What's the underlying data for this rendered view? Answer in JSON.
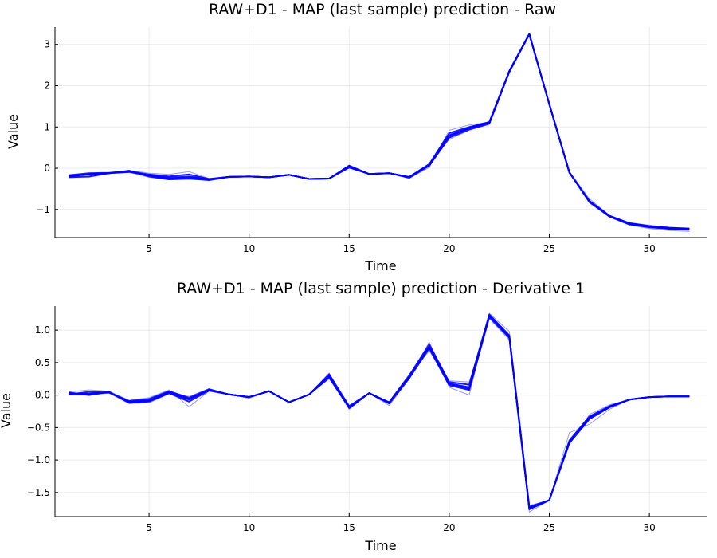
{
  "chart_data": [
    {
      "type": "line",
      "title": "RAW+D1 - MAP (last sample) prediction - Raw",
      "xlabel": "Time",
      "ylabel": "Value",
      "xlim": [
        0.3,
        32.9
      ],
      "ylim": [
        -1.68,
        3.42
      ],
      "xticks": [
        5,
        10,
        15,
        20,
        25,
        30
      ],
      "xtick_labels": [
        "5",
        "10",
        "15",
        "20",
        "25",
        "30"
      ],
      "yticks": [
        -1,
        0,
        1,
        2,
        3
      ],
      "ytick_labels": [
        "−1",
        "0",
        "1",
        "2",
        "3"
      ],
      "grid": true,
      "legend": "none",
      "line_color": "#0000ff",
      "x": [
        1,
        2,
        3,
        4,
        5,
        6,
        7,
        8,
        9,
        10,
        11,
        12,
        13,
        14,
        15,
        16,
        17,
        18,
        19,
        20,
        21,
        22,
        23,
        24,
        25,
        26,
        27,
        28,
        29,
        30,
        31,
        32
      ],
      "series": [
        {
          "values": [
            -0.19,
            -0.15,
            -0.12,
            -0.08,
            -0.18,
            -0.25,
            -0.22,
            -0.27,
            -0.21,
            -0.2,
            -0.22,
            -0.16,
            -0.26,
            -0.25,
            0.04,
            -0.14,
            -0.12,
            -0.22,
            0.08,
            0.78,
            0.97,
            1.1,
            2.35,
            3.25,
            1.55,
            -0.1,
            -0.8,
            -1.16,
            -1.34,
            -1.41,
            -1.45,
            -1.47
          ]
        },
        {
          "values": [
            -0.22,
            -0.2,
            -0.12,
            -0.06,
            -0.2,
            -0.27,
            -0.25,
            -0.29,
            -0.21,
            -0.2,
            -0.22,
            -0.16,
            -0.26,
            -0.25,
            0.02,
            -0.14,
            -0.12,
            -0.23,
            0.06,
            0.74,
            0.94,
            1.08,
            2.33,
            3.24,
            1.56,
            -0.1,
            -0.82,
            -1.17,
            -1.36,
            -1.43,
            -1.47,
            -1.49
          ]
        },
        {
          "values": [
            -0.17,
            -0.12,
            -0.11,
            -0.07,
            -0.15,
            -0.2,
            -0.15,
            -0.26,
            -0.21,
            -0.2,
            -0.22,
            -0.16,
            -0.26,
            -0.25,
            0.06,
            -0.14,
            -0.12,
            -0.21,
            0.1,
            0.85,
            1.0,
            1.12,
            2.36,
            3.26,
            1.55,
            -0.11,
            -0.79,
            -1.15,
            -1.33,
            -1.4,
            -1.44,
            -1.46
          ]
        },
        {
          "values": [
            -0.2,
            -0.14,
            -0.12,
            -0.09,
            -0.17,
            -0.23,
            -0.2,
            -0.27,
            -0.21,
            -0.2,
            -0.22,
            -0.16,
            -0.26,
            -0.25,
            0.05,
            -0.14,
            -0.12,
            -0.22,
            0.08,
            0.8,
            0.98,
            1.11,
            2.35,
            3.25,
            1.55,
            -0.1,
            -0.8,
            -1.16,
            -1.35,
            -1.42,
            -1.46,
            -1.48
          ]
        }
      ],
      "faint_series": [
        {
          "values": [
            -0.21,
            -0.22,
            -0.13,
            -0.05,
            -0.12,
            -0.15,
            -0.08,
            -0.25,
            -0.2,
            -0.2,
            -0.22,
            -0.16,
            -0.26,
            -0.25,
            0.0,
            -0.14,
            -0.12,
            -0.25,
            0.02,
            0.92,
            1.05,
            1.12,
            2.35,
            3.24,
            1.57,
            -0.08,
            -0.74,
            -1.14,
            -1.32,
            -1.38,
            -1.43,
            -1.46
          ]
        },
        {
          "values": [
            -0.18,
            -0.16,
            -0.12,
            -0.1,
            -0.22,
            -0.28,
            -0.27,
            -0.29,
            -0.22,
            -0.2,
            -0.22,
            -0.16,
            -0.26,
            -0.25,
            0.08,
            -0.14,
            -0.12,
            -0.21,
            0.1,
            0.7,
            0.92,
            1.06,
            2.32,
            3.26,
            1.55,
            -0.12,
            -0.84,
            -1.18,
            -1.38,
            -1.46,
            -1.51,
            -1.53
          ]
        }
      ]
    },
    {
      "type": "line",
      "title": "RAW+D1 - MAP (last sample) prediction - Derivative 1",
      "xlabel": "Time",
      "ylabel": "Value",
      "xlim": [
        0.3,
        32.9
      ],
      "ylim": [
        -1.87,
        1.37
      ],
      "xticks": [
        5,
        10,
        15,
        20,
        25,
        30
      ],
      "xtick_labels": [
        "5",
        "10",
        "15",
        "20",
        "25",
        "30"
      ],
      "yticks": [
        -1.5,
        -1.0,
        -0.5,
        0.0,
        0.5,
        1.0
      ],
      "ytick_labels": [
        "−1.5",
        "−1.0",
        "−0.5",
        "0.0",
        "0.5",
        "1.0"
      ],
      "grid": true,
      "legend": "none",
      "line_color": "#0000ff",
      "x": [
        1,
        2,
        3,
        4,
        5,
        6,
        7,
        8,
        9,
        10,
        11,
        12,
        13,
        14,
        15,
        16,
        17,
        18,
        19,
        20,
        21,
        22,
        23,
        24,
        25,
        26,
        27,
        28,
        29,
        30,
        31,
        32
      ],
      "series": [
        {
          "values": [
            0.02,
            0.02,
            0.04,
            -0.1,
            -0.08,
            0.05,
            -0.06,
            0.08,
            0.01,
            -0.03,
            0.06,
            -0.11,
            0.01,
            0.3,
            -0.19,
            0.03,
            -0.12,
            0.28,
            0.75,
            0.18,
            0.12,
            1.22,
            0.9,
            -1.74,
            -1.62,
            -0.72,
            -0.35,
            -0.18,
            -0.07,
            -0.03,
            -0.02,
            -0.02
          ]
        },
        {
          "values": [
            0.04,
            0.0,
            0.05,
            -0.12,
            -0.1,
            0.03,
            -0.1,
            0.07,
            0.01,
            -0.03,
            0.06,
            -0.11,
            0.01,
            0.27,
            -0.2,
            0.03,
            -0.13,
            0.26,
            0.72,
            0.15,
            0.08,
            1.2,
            0.88,
            -1.76,
            -1.62,
            -0.74,
            -0.37,
            -0.19,
            -0.07,
            -0.03,
            -0.02,
            -0.02
          ]
        },
        {
          "values": [
            0.01,
            0.05,
            0.04,
            -0.09,
            -0.06,
            0.06,
            -0.04,
            0.09,
            0.01,
            -0.03,
            0.06,
            -0.11,
            0.01,
            0.32,
            -0.17,
            0.03,
            -0.11,
            0.3,
            0.78,
            0.2,
            0.16,
            1.24,
            0.92,
            -1.72,
            -1.62,
            -0.7,
            -0.33,
            -0.17,
            -0.07,
            -0.03,
            -0.02,
            -0.02
          ]
        },
        {
          "values": [
            0.03,
            0.02,
            0.05,
            -0.11,
            -0.09,
            0.04,
            -0.07,
            0.08,
            0.01,
            -0.03,
            0.06,
            -0.11,
            0.01,
            0.29,
            -0.19,
            0.03,
            -0.12,
            0.28,
            0.74,
            0.17,
            0.1,
            1.22,
            0.9,
            -1.74,
            -1.62,
            -0.72,
            -0.35,
            -0.18,
            -0.07,
            -0.03,
            -0.02,
            -0.02
          ]
        }
      ],
      "faint_series": [
        {
          "values": [
            0.05,
            0.08,
            0.06,
            -0.08,
            -0.04,
            0.08,
            -0.18,
            0.06,
            0.01,
            -0.05,
            0.06,
            -0.11,
            0.01,
            0.34,
            -0.22,
            0.03,
            -0.16,
            0.25,
            0.82,
            0.12,
            0.0,
            1.26,
            0.98,
            -1.8,
            -1.62,
            -0.58,
            -0.45,
            -0.22,
            -0.07,
            -0.03,
            -0.02,
            -0.02
          ]
        },
        {
          "values": [
            0.0,
            0.0,
            0.03,
            -0.13,
            -0.12,
            0.02,
            -0.02,
            0.1,
            0.01,
            -0.02,
            0.06,
            -0.11,
            0.01,
            0.25,
            -0.16,
            0.03,
            -0.1,
            0.32,
            0.68,
            0.22,
            0.2,
            1.18,
            0.85,
            -1.7,
            -1.62,
            -0.76,
            -0.3,
            -0.15,
            -0.07,
            -0.03,
            -0.02,
            -0.02
          ]
        }
      ]
    }
  ]
}
